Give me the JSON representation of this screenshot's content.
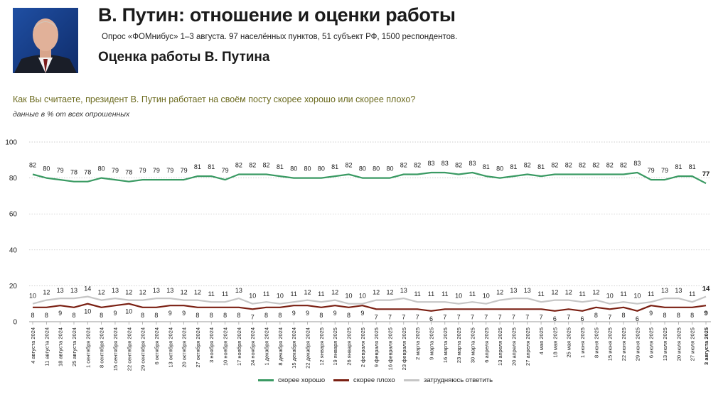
{
  "header": {
    "title": "В. Путин: отношение и оценки работы",
    "subtitle": "Опрос «ФОМнибус» 1–3 августа. 97 населённых пунктов, 51 субъект РФ, 1500 респондентов.",
    "section": "Оценка работы В. Путина",
    "question": "Как Вы считаете, президент В. Путин работает на своём посту скорее хорошо или скорее плохо?",
    "unit": "данные в % от всех опрошенных"
  },
  "colors": {
    "good": "#3a9a63",
    "bad": "#7a1f12",
    "unsure": "#c6c6c6",
    "grid": "#bfbfbf"
  },
  "chart_data": {
    "type": "line",
    "ylim": [
      0,
      100
    ],
    "yticks": [
      0,
      20,
      40,
      60,
      80,
      100
    ],
    "grid": true,
    "legend": "bottom",
    "categories": [
      "4 августа 2024",
      "11 августа 2024",
      "18 августа 2024",
      "25 августа 2024",
      "1 сентября 2024",
      "8 сентября 2024",
      "15 сентября 2024",
      "22 сентября 2024",
      "29 сентября 2024",
      "6 октября 2024",
      "13 октября 2024",
      "20 октября 2024",
      "27 октября 2024",
      "3 ноября 2024",
      "10 ноября 2024",
      "17 ноября 2024",
      "24 ноября 2024",
      "1 декабря 2024",
      "8 декабря 2024",
      "15 декабря 2024",
      "22 декабря 2024",
      "12 января 2025",
      "19 января 2025",
      "26 января 2025",
      "2 февраля 2025",
      "9 февраля 2025",
      "16 февраля 2025",
      "23 февраля 2025",
      "2 марта 2025",
      "9 марта 2025",
      "16 марта 2025",
      "23 марта 2025",
      "30 марта 2025",
      "6 апреля 2025",
      "13 апреля 2025",
      "20 апреля 2025",
      "27 апреля 2025",
      "4 мая 2025",
      "18 мая 2025",
      "25 мая 2025",
      "1 июня 2025",
      "8 июня 2025",
      "15 июня 2025",
      "22 июня 2025",
      "29 июня 2025",
      "6 июля 2025",
      "13 июля 2025",
      "20 июля 2025",
      "27 июля 2025",
      "3 августа 2025"
    ],
    "series": [
      {
        "key": "good",
        "name": "скорее хорошо",
        "values": [
          82,
          80,
          79,
          78,
          78,
          80,
          79,
          78,
          79,
          79,
          79,
          79,
          81,
          81,
          79,
          82,
          82,
          82,
          81,
          80,
          80,
          80,
          81,
          82,
          80,
          80,
          80,
          82,
          82,
          83,
          83,
          82,
          83,
          81,
          80,
          81,
          82,
          81,
          82,
          82,
          82,
          82,
          82,
          82,
          83,
          79,
          79,
          81,
          81,
          77
        ]
      },
      {
        "key": "bad",
        "name": "скорее плохо",
        "values": [
          8,
          8,
          9,
          8,
          10,
          8,
          9,
          10,
          8,
          8,
          9,
          9,
          8,
          8,
          8,
          8,
          7,
          8,
          8,
          9,
          9,
          8,
          9,
          8,
          9,
          7,
          7,
          7,
          7,
          6,
          7,
          7,
          7,
          7,
          7,
          7,
          7,
          7,
          6,
          7,
          6,
          8,
          7,
          8,
          6,
          9,
          8,
          8,
          8,
          9
        ]
      },
      {
        "key": "unsure",
        "name": "затрудняюсь ответить",
        "values": [
          10,
          12,
          13,
          13,
          14,
          12,
          13,
          12,
          12,
          13,
          13,
          12,
          12,
          11,
          11,
          13,
          10,
          11,
          10,
          11,
          12,
          11,
          12,
          10,
          10,
          12,
          12,
          13,
          11,
          11,
          11,
          10,
          11,
          10,
          12,
          13,
          13,
          11,
          12,
          12,
          11,
          12,
          10,
          11,
          10,
          11,
          13,
          13,
          11,
          14
        ]
      }
    ]
  }
}
